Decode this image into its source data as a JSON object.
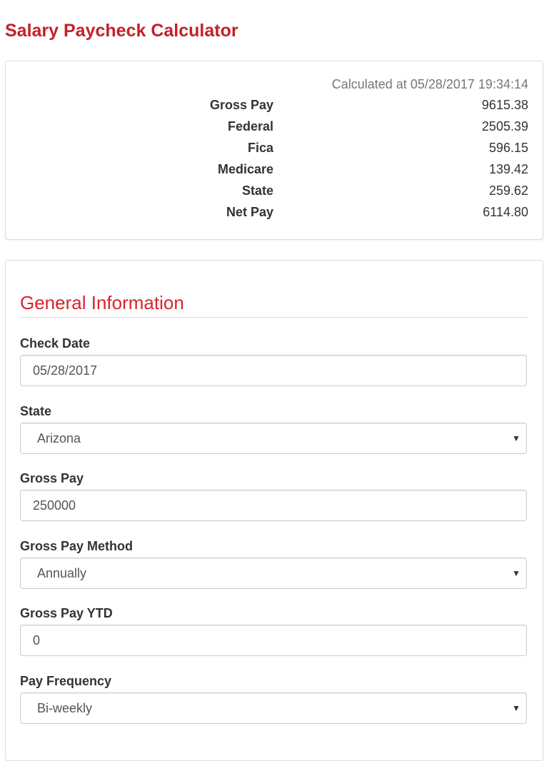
{
  "title": "Salary Paycheck Calculator",
  "summary": {
    "calculated_at": "Calculated at 05/28/2017 19:34:14",
    "rows": [
      {
        "label": "Gross Pay",
        "value": "9615.38"
      },
      {
        "label": "Federal",
        "value": "2505.39"
      },
      {
        "label": "Fica",
        "value": "596.15"
      },
      {
        "label": "Medicare",
        "value": "139.42"
      },
      {
        "label": "State",
        "value": "259.62"
      },
      {
        "label": "Net Pay",
        "value": "6114.80"
      }
    ]
  },
  "form": {
    "section_title": "General Information",
    "fields": [
      {
        "label": "Check Date",
        "value": "05/28/2017",
        "type": "input"
      },
      {
        "label": "State",
        "value": "Arizona",
        "type": "select"
      },
      {
        "label": "Gross Pay",
        "value": "250000",
        "type": "input"
      },
      {
        "label": "Gross Pay Method",
        "value": "Annually",
        "type": "select"
      },
      {
        "label": "Gross Pay YTD",
        "value": "0",
        "type": "input"
      },
      {
        "label": "Pay Frequency",
        "value": "Bi-weekly",
        "type": "select"
      }
    ],
    "caret": "▼"
  },
  "colors": {
    "title": "#c4202b",
    "section": "#d9232e"
  }
}
